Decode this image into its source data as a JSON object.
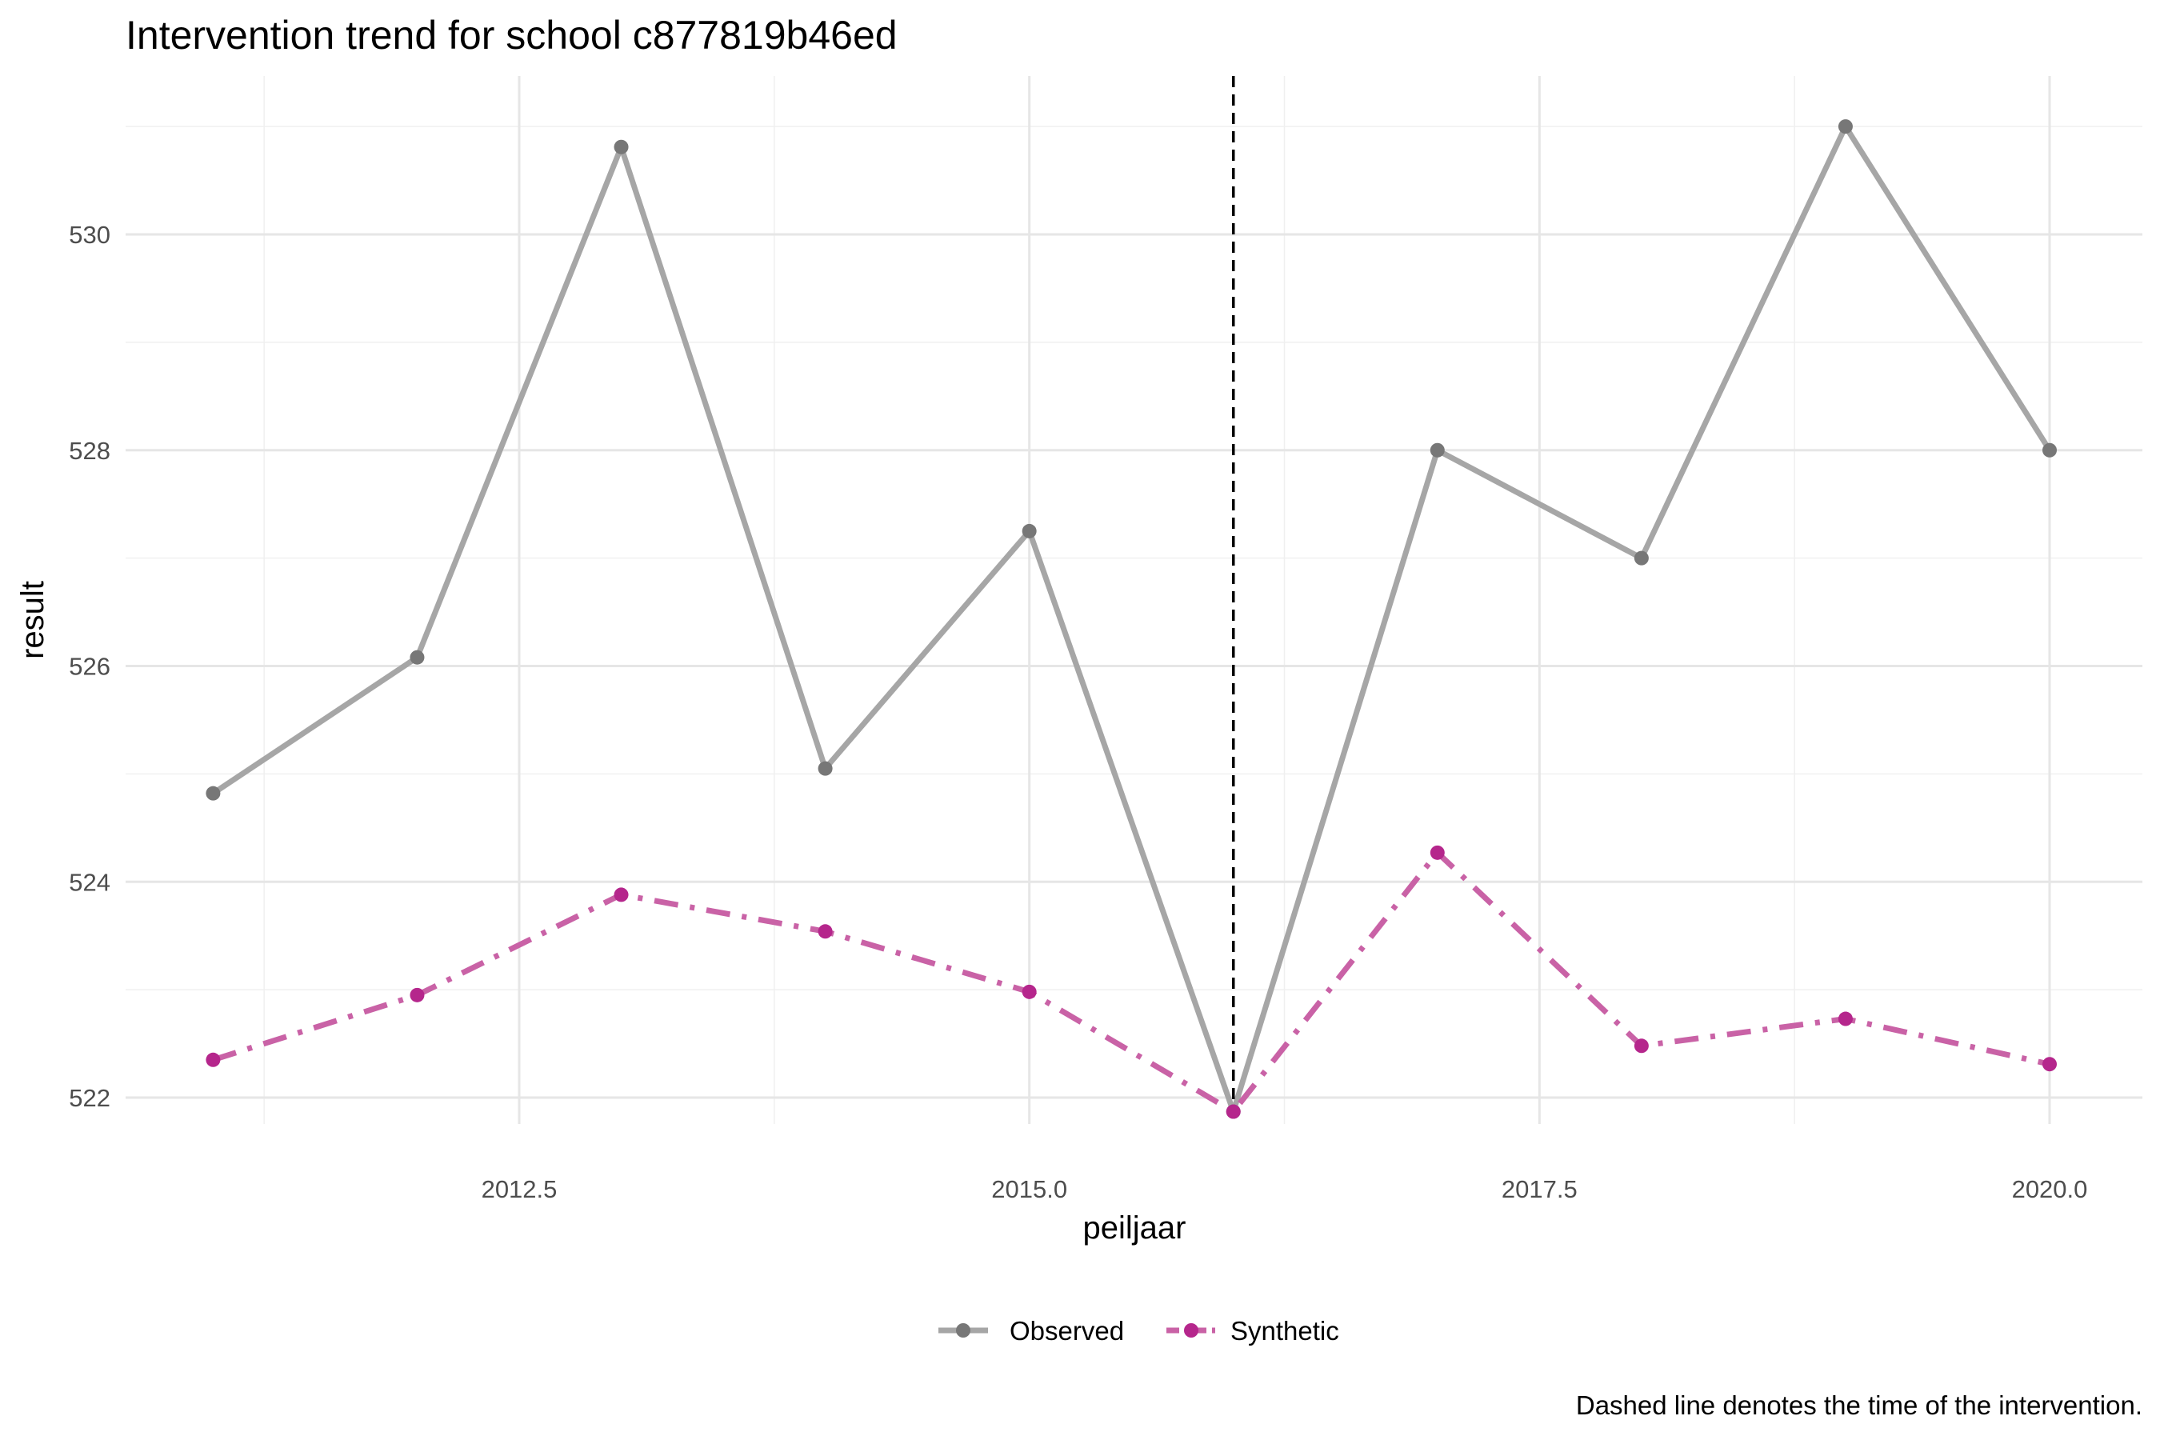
{
  "title": "Intervention trend for school c877819b46ed",
  "caption": "Dashed line denotes the time of the intervention.",
  "chart_data": {
    "type": "line",
    "title": "Intervention trend for school c877819b46ed",
    "xlabel": "peiljaar",
    "ylabel": "result",
    "xlim": [
      2010.6,
      2020.45
    ],
    "ylim": [
      521.6,
      532.0
    ],
    "x_ticks": [
      {
        "value": 2012.5,
        "label": "2012.5"
      },
      {
        "value": 2015.0,
        "label": "2015.0"
      },
      {
        "value": 2017.5,
        "label": "2017.5"
      },
      {
        "value": 2020.0,
        "label": "2020.0"
      }
    ],
    "x_minor_ticks": [
      2011.25,
      2013.75,
      2016.25,
      2018.75
    ],
    "y_ticks": [
      {
        "value": 522,
        "label": "522"
      },
      {
        "value": 524,
        "label": "524"
      },
      {
        "value": 526,
        "label": "526"
      },
      {
        "value": 528,
        "label": "528"
      },
      {
        "value": 530,
        "label": "530"
      }
    ],
    "y_minor_ticks": [
      523,
      525,
      527,
      529,
      531
    ],
    "grid": true,
    "intervention_x": 2016,
    "x": [
      2011,
      2012,
      2013,
      2014,
      2015,
      2016,
      2017,
      2018,
      2019,
      2020
    ],
    "series": [
      {
        "name": "Observed",
        "values": [
          524.82,
          526.08,
          530.81,
          525.05,
          527.25,
          521.87,
          528.0,
          527.0,
          531.0,
          528.0
        ],
        "line_color": "#a6a6a6",
        "point_color": "#777777",
        "linestyle": "solid"
      },
      {
        "name": "Synthetic",
        "values": [
          522.35,
          522.95,
          523.88,
          523.54,
          522.98,
          521.87,
          524.27,
          522.48,
          522.73,
          522.31
        ],
        "line_color": "#c962a6",
        "point_color": "#b5268c",
        "linestyle": "dashdot"
      }
    ],
    "legend_position": "bottom"
  }
}
